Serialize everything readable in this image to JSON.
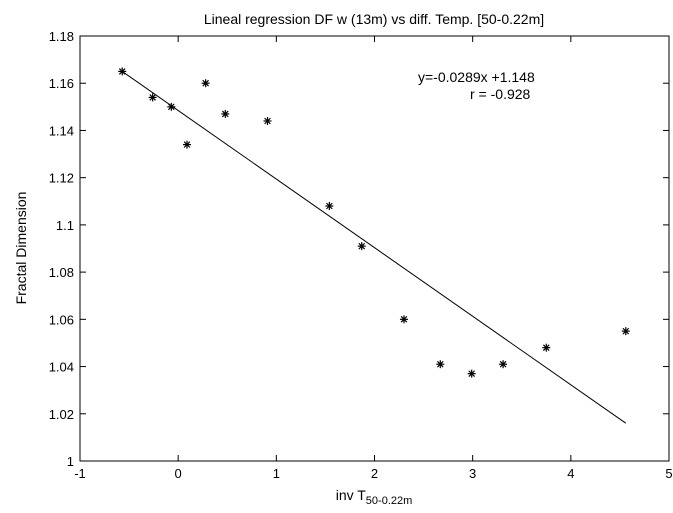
{
  "chart_data": {
    "type": "scatter",
    "title": "Lineal regression DF w (13m) vs diff. Temp. [50-0.22m]",
    "xlabel": "inv T",
    "xlabel_subscript": "50-0.22m",
    "ylabel": "Fractal Dimension",
    "xlim": [
      -1,
      5
    ],
    "ylim": [
      1.0,
      1.18
    ],
    "x_ticks": [
      -1,
      0,
      1,
      2,
      3,
      4,
      5
    ],
    "x_tick_labels": [
      "-1",
      "0",
      "1",
      "2",
      "3",
      "4",
      "5"
    ],
    "y_ticks": [
      1.0,
      1.02,
      1.04,
      1.06,
      1.08,
      1.1,
      1.12,
      1.14,
      1.16,
      1.18
    ],
    "y_tick_labels": [
      "1",
      "1.02",
      "1.04",
      "1.06",
      "1.08",
      "1.1",
      "1.12",
      "1.14",
      "1.16",
      "1.18"
    ],
    "grid": false,
    "marker": "*",
    "points": [
      {
        "x": -0.57,
        "y": 1.165
      },
      {
        "x": -0.26,
        "y": 1.154
      },
      {
        "x": -0.07,
        "y": 1.15
      },
      {
        "x": 0.09,
        "y": 1.134
      },
      {
        "x": 0.28,
        "y": 1.16
      },
      {
        "x": 0.48,
        "y": 1.147
      },
      {
        "x": 0.91,
        "y": 1.144
      },
      {
        "x": 1.54,
        "y": 1.108
      },
      {
        "x": 1.87,
        "y": 1.091
      },
      {
        "x": 2.3,
        "y": 1.06
      },
      {
        "x": 2.67,
        "y": 1.041
      },
      {
        "x": 2.99,
        "y": 1.037
      },
      {
        "x": 3.31,
        "y": 1.041
      },
      {
        "x": 3.75,
        "y": 1.048
      },
      {
        "x": 4.56,
        "y": 1.055
      }
    ],
    "fit_line": {
      "x_start": -0.57,
      "y_start": 1.165,
      "x_end": 4.56,
      "y_end": 1.016
    },
    "annotations": [
      "y=-0.0289x +1.148",
      "r = -0.928"
    ]
  }
}
